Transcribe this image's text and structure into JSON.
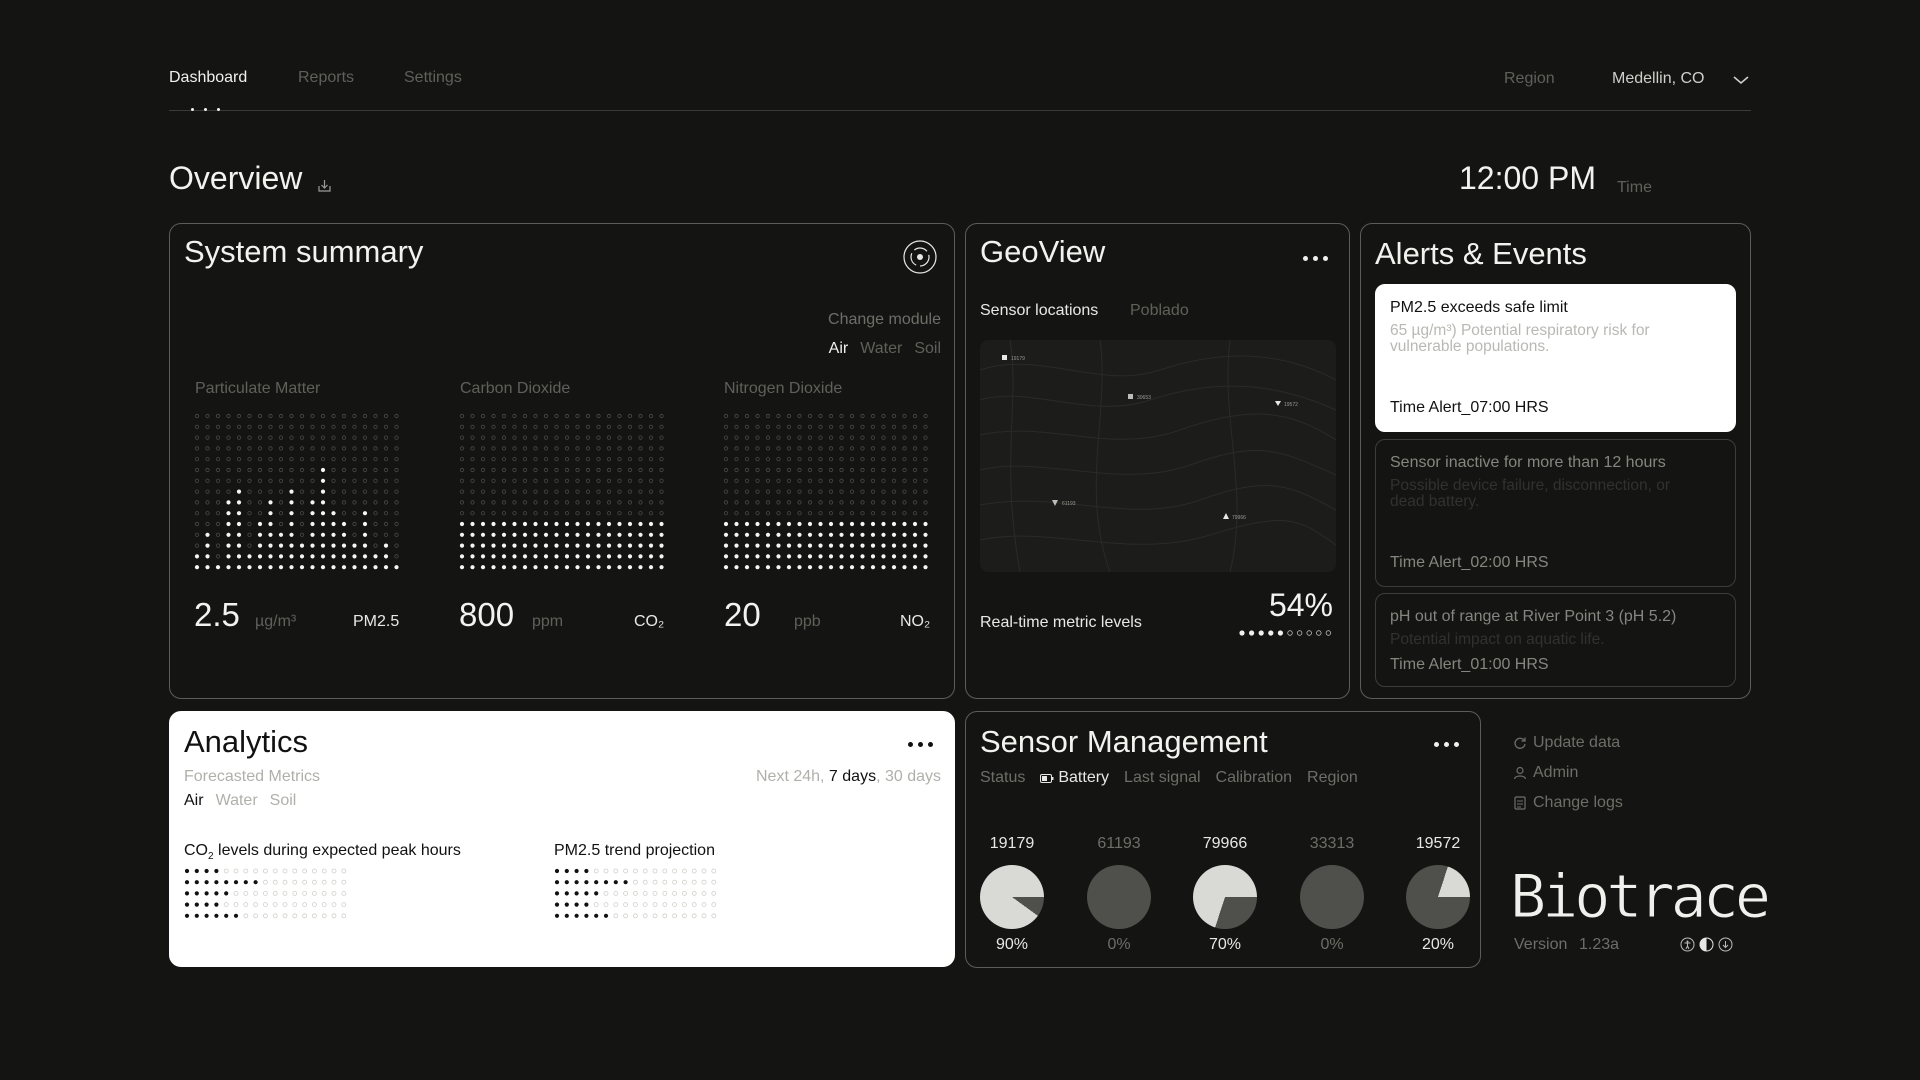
{
  "nav": {
    "tabs": [
      "Dashboard",
      "Reports",
      "Settings"
    ],
    "region_label": "Region",
    "region_value": "Medellin, CO"
  },
  "overview": {
    "title": "Overview",
    "time": "12:00 PM",
    "time_label": "Time"
  },
  "summary": {
    "title": "System summary",
    "change_module": "Change module",
    "modules": [
      "Air",
      "Water",
      "Soil"
    ],
    "metrics": [
      {
        "name": "Particulate Matter",
        "value": "2.5",
        "unit": "µg/m³",
        "code": "PM2.5"
      },
      {
        "name": "Carbon Dioxide",
        "value": "800",
        "unit": "ppm",
        "code": "CO₂"
      },
      {
        "name": "Nitrogen Dioxide",
        "value": "20",
        "unit": "ppb",
        "code": "NO₂"
      }
    ],
    "pm_levels": [
      2,
      4,
      1,
      7,
      8,
      2,
      5,
      7,
      4,
      8,
      3,
      7,
      10,
      6,
      5,
      3,
      6,
      2,
      3,
      1
    ],
    "co2_levels": [
      5,
      5,
      5,
      5,
      5,
      5,
      5,
      5,
      5,
      5,
      5,
      5,
      5,
      5,
      5,
      5,
      5,
      5,
      5,
      5
    ],
    "no2_levels": [
      5,
      5,
      5,
      5,
      5,
      5,
      5,
      5,
      5,
      5,
      5,
      5,
      5,
      5,
      5,
      5,
      5,
      5,
      5,
      5
    ]
  },
  "geo": {
    "title": "GeoView",
    "tabs": [
      "Sensor locations",
      "Poblado"
    ],
    "markers": [
      "19179",
      "30653",
      "19572",
      "61193",
      "79966"
    ],
    "metric_label": "Real-time metric levels",
    "metric_value": "54%",
    "metric_fraction": 0.54
  },
  "alerts": {
    "title": "Alerts & Events",
    "items": [
      {
        "head": "PM2.5 exceeds safe limit",
        "body": "65 µg/m³) Potential respiratory risk for vulnerable populations.",
        "time": "Time Alert_07:00 HRS"
      },
      {
        "head": "Sensor inactive for more than 12 hours",
        "body": "Possible device failure, disconnection, or dead battery.",
        "time": "Time Alert_02:00 HRS"
      },
      {
        "head": "pH out of range at River Point 3 (pH 5.2)",
        "body": "Potential impact on aquatic life.",
        "time": "Time Alert_01:00 HRS"
      }
    ]
  },
  "analytics": {
    "title": "Analytics",
    "subtitle": "Forecasted Metrics",
    "modules": [
      "Air",
      "Water",
      "Soil"
    ],
    "range_prefix": "Next 24h, ",
    "range_active": "7 days",
    "range_suffix": ", 30 days",
    "chart1": "levels during expected peak hours",
    "chart1_prefix": "CO",
    "chart1_sub": "2",
    "chart2": "PM2.5 trend projection",
    "chart1_fill": [
      4,
      8,
      5,
      4,
      6
    ],
    "chart2_fill": [
      4,
      8,
      5,
      4,
      6
    ]
  },
  "sensors": {
    "title": "Sensor Management",
    "tabs": [
      "Status",
      "Battery",
      "Last signal",
      "Calibration",
      "Region"
    ],
    "active_tab": "Battery",
    "items": [
      {
        "id": "19179",
        "pct": "90%",
        "value": 0.9,
        "active": true
      },
      {
        "id": "61193",
        "pct": "0%",
        "value": 0,
        "active": false
      },
      {
        "id": "79966",
        "pct": "70%",
        "value": 0.7,
        "active": true
      },
      {
        "id": "33313",
        "pct": "0%",
        "value": 0,
        "active": false
      },
      {
        "id": "19572",
        "pct": "20%",
        "value": 0.2,
        "active": true
      }
    ]
  },
  "side": {
    "links": [
      "Update data",
      "Admin",
      "Change logs"
    ],
    "brand": "Biotrace",
    "version_label": "Version",
    "version": "1.23a"
  }
}
